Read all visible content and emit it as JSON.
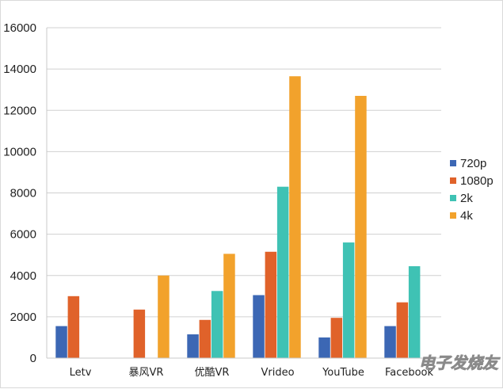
{
  "chart_data": {
    "type": "bar",
    "categories": [
      "Letv",
      "暴风VR",
      "优酷VR",
      "Vrideo",
      "YouTube",
      "Facebook"
    ],
    "series": [
      {
        "name": "720p",
        "color": "#3c67b4",
        "values": [
          1550,
          null,
          1150,
          3050,
          1000,
          1550
        ]
      },
      {
        "name": "1080p",
        "color": "#e0622a",
        "values": [
          3000,
          2350,
          1850,
          5150,
          1950,
          2700
        ]
      },
      {
        "name": "2k",
        "color": "#3fc2b4",
        "values": [
          null,
          null,
          3250,
          8300,
          5600,
          4450
        ]
      },
      {
        "name": "4k",
        "color": "#f2a22c",
        "values": [
          null,
          4000,
          5050,
          13650,
          12700,
          null
        ]
      }
    ],
    "ylim": [
      0,
      16000
    ],
    "yticks": [
      0,
      2000,
      4000,
      6000,
      8000,
      10000,
      12000,
      14000,
      16000
    ],
    "grid": true,
    "legend_position": "right"
  },
  "watermark": "电子发烧友"
}
